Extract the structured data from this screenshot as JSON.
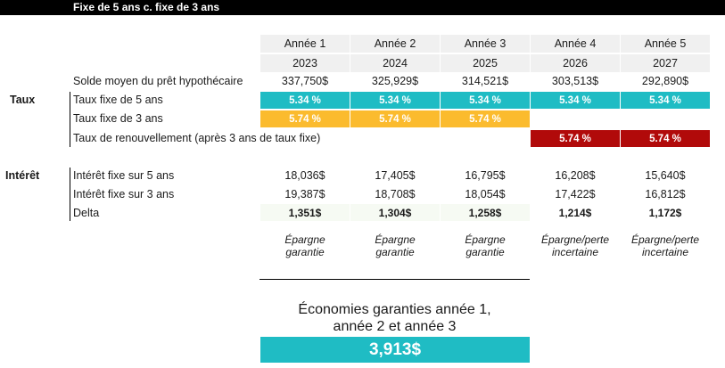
{
  "title": "Fixe de 5 ans c. fixe de 3 ans",
  "years": [
    {
      "label": "Année 1",
      "year": "2023"
    },
    {
      "label": "Année 2",
      "year": "2024"
    },
    {
      "label": "Année 3",
      "year": "2025"
    },
    {
      "label": "Année 4",
      "year": "2026"
    },
    {
      "label": "Année 5",
      "year": "2027"
    }
  ],
  "balance": {
    "label": "Solde moyen du prêt hypothécaire",
    "values": [
      "337,750$",
      "325,929$",
      "314,521$",
      "303,513$",
      "292,890$"
    ]
  },
  "taux": {
    "group_label": "Taux",
    "fixed5_label": "Taux fixe de 5 ans",
    "fixed5": [
      "5.34 %",
      "5.34 %",
      "5.34 %",
      "5.34 %",
      "5.34 %"
    ],
    "fixed3_label": "Taux fixe de 3 ans",
    "fixed3": [
      "5.74 %",
      "5.74 %",
      "5.74 %"
    ],
    "renewal_label": "Taux de renouvellement (après 3 ans de taux fixe)",
    "renewal": [
      "5.74 %",
      "5.74 %"
    ],
    "colors": {
      "fixed5": "#1fbcc4",
      "fixed3": "#fbbb2e",
      "renewal": "#b10a0a"
    }
  },
  "interet": {
    "group_label": "Intérêt",
    "fixed5_label": "Intérêt fixe sur 5 ans",
    "fixed5": [
      "18,036$",
      "17,405$",
      "16,795$",
      "16,208$",
      "15,640$"
    ],
    "fixed3_label": "Intérêt fixe sur 3 ans",
    "fixed3": [
      "19,387$",
      "18,708$",
      "18,054$",
      "17,422$",
      "16,812$"
    ],
    "delta_label": "Delta",
    "delta": [
      "1,351$",
      "1,304$",
      "1,258$",
      "1,214$",
      "1,172$"
    ]
  },
  "notes": [
    {
      "line1": "Épargne",
      "line2": "garantie"
    },
    {
      "line1": "Épargne",
      "line2": "garantie"
    },
    {
      "line1": "Épargne",
      "line2": "garantie"
    },
    {
      "line1": "Épargne/perte",
      "line2": "incertaine"
    },
    {
      "line1": "Épargne/perte",
      "line2": "incertaine"
    }
  ],
  "savings": {
    "line1": "Économies garanties année 1,",
    "line2": "année 2 et année 3",
    "value": "3,913$"
  }
}
